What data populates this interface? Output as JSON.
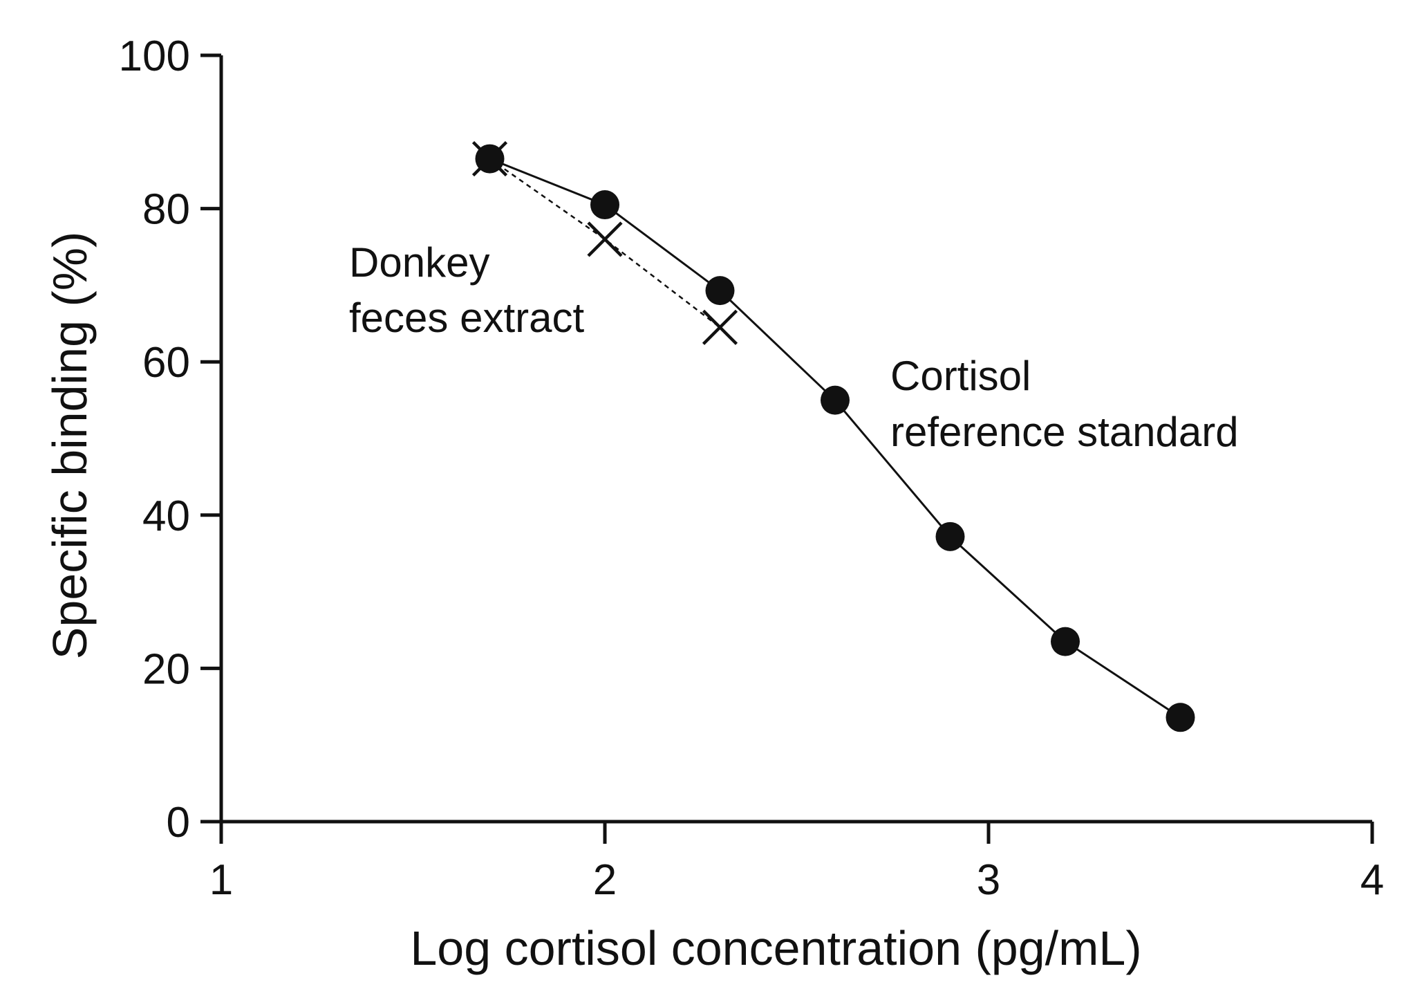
{
  "chart_data": {
    "type": "line",
    "title": "",
    "xlabel": "Log cortisol concentration (pg/mL)",
    "ylabel": "Specific binding (%)",
    "xlim": [
      1,
      4
    ],
    "ylim": [
      0,
      100
    ],
    "xticks": [
      1,
      2,
      3,
      4
    ],
    "yticks": [
      0,
      20,
      40,
      60,
      80,
      100
    ],
    "grid": false,
    "series": [
      {
        "name": "Cortisol reference standard",
        "marker": "filled-circle",
        "line_style": "solid",
        "x": [
          1.7,
          2.0,
          2.3,
          2.6,
          2.9,
          3.2,
          3.5
        ],
        "y": [
          86.5,
          80.5,
          69.3,
          55.0,
          37.2,
          23.5,
          13.6
        ]
      },
      {
        "name": "Donkey feces extract",
        "marker": "x",
        "line_style": "dashed",
        "x": [
          1.7,
          2.0,
          2.3
        ],
        "y": [
          86.5,
          76.0,
          64.5
        ]
      }
    ],
    "annotations": [
      {
        "lines": [
          "Donkey",
          "feces extract"
        ],
        "series": "Donkey feces extract"
      },
      {
        "lines": [
          "Cortisol",
          "reference standard"
        ],
        "series": "Cortisol reference standard"
      }
    ]
  },
  "colors": {
    "ink": "#111111",
    "background": "#ffffff"
  }
}
